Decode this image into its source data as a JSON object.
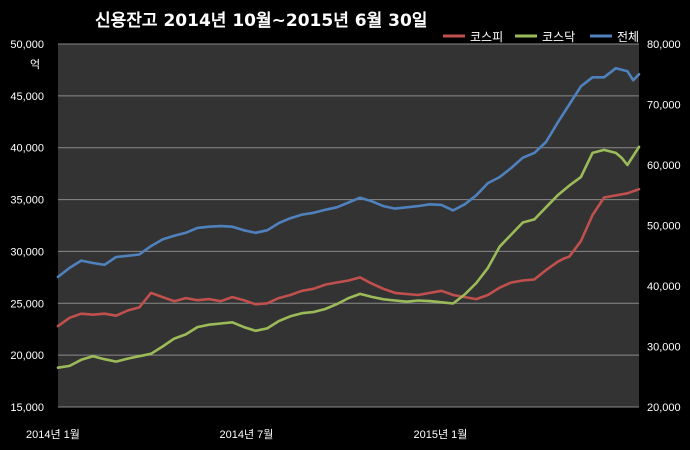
{
  "chart_data": {
    "type": "line",
    "title": "신용잔고 2014년 10월~2015년 6월 30일",
    "left_unit": "억",
    "left_axis": {
      "min": 15000,
      "max": 50000,
      "step": 5000,
      "ticks": [
        "15,000",
        "20,000",
        "25,000",
        "30,000",
        "35,000",
        "40,000",
        "45,000",
        "50,000"
      ]
    },
    "right_axis": {
      "min": 20000,
      "max": 80000,
      "step": 10000,
      "ticks": [
        "20,000",
        "30,000",
        "40,000",
        "50,000",
        "60,000",
        "70,000",
        "80,000"
      ]
    },
    "x_labels": [
      {
        "label": "2014년 1월",
        "t": 0
      },
      {
        "label": "2014년 7월",
        "t": 0.333
      },
      {
        "label": "2015년 1월",
        "t": 0.667
      }
    ],
    "grid": true,
    "legend_position": "top-right",
    "series": [
      {
        "name": "코스피",
        "color": "#c0504d",
        "axis": "left",
        "x": [
          0,
          0.02,
          0.04,
          0.06,
          0.08,
          0.1,
          0.12,
          0.14,
          0.16,
          0.18,
          0.2,
          0.22,
          0.24,
          0.26,
          0.28,
          0.3,
          0.32,
          0.34,
          0.36,
          0.38,
          0.4,
          0.42,
          0.44,
          0.46,
          0.48,
          0.5,
          0.52,
          0.54,
          0.56,
          0.58,
          0.6,
          0.62,
          0.64,
          0.66,
          0.68,
          0.7,
          0.72,
          0.74,
          0.76,
          0.78,
          0.8,
          0.82,
          0.84,
          0.86,
          0.87,
          0.88,
          0.9,
          0.92,
          0.94,
          0.96,
          0.98,
          1.0
        ],
        "values": [
          22800,
          23600,
          24000,
          23900,
          24000,
          23800,
          24300,
          24600,
          26000,
          25600,
          25200,
          25500,
          25300,
          25400,
          25200,
          25600,
          25300,
          24900,
          25000,
          25500,
          25800,
          26200,
          26400,
          26800,
          27000,
          27200,
          27500,
          26900,
          26400,
          26000,
          25900,
          25800,
          26000,
          26200,
          25800,
          25600,
          25400,
          25800,
          26500,
          27000,
          27200,
          27300,
          28200,
          29000,
          29300,
          29500,
          31000,
          33500,
          35200,
          35400,
          35600,
          36000
        ]
      },
      {
        "name": "코스닥",
        "color": "#9bbb59",
        "axis": "right",
        "x": [
          0,
          0.02,
          0.04,
          0.06,
          0.08,
          0.1,
          0.12,
          0.14,
          0.16,
          0.18,
          0.2,
          0.22,
          0.24,
          0.26,
          0.28,
          0.3,
          0.32,
          0.34,
          0.36,
          0.38,
          0.4,
          0.42,
          0.44,
          0.46,
          0.48,
          0.5,
          0.52,
          0.54,
          0.56,
          0.58,
          0.6,
          0.62,
          0.64,
          0.66,
          0.68,
          0.7,
          0.72,
          0.74,
          0.76,
          0.78,
          0.8,
          0.82,
          0.84,
          0.86,
          0.88,
          0.9,
          0.92,
          0.94,
          0.96,
          0.97,
          0.98,
          1.0
        ],
        "values": [
          26500,
          26800,
          27800,
          28400,
          27900,
          27500,
          28000,
          28400,
          28800,
          30000,
          31300,
          32000,
          33200,
          33600,
          33800,
          34000,
          33200,
          32600,
          33000,
          34200,
          35000,
          35500,
          35700,
          36200,
          37000,
          38000,
          38700,
          38200,
          37800,
          37600,
          37400,
          37600,
          37500,
          37300,
          37100,
          38600,
          40500,
          43000,
          46500,
          48500,
          50500,
          51000,
          53000,
          55000,
          56600,
          58000,
          62000,
          62500,
          62000,
          61200,
          60000,
          63000
        ]
      },
      {
        "name": "전체",
        "color": "#4f81bd",
        "axis": "right",
        "x": [
          0,
          0.02,
          0.04,
          0.06,
          0.08,
          0.1,
          0.12,
          0.14,
          0.16,
          0.18,
          0.2,
          0.22,
          0.24,
          0.26,
          0.28,
          0.3,
          0.32,
          0.34,
          0.36,
          0.38,
          0.4,
          0.42,
          0.44,
          0.46,
          0.48,
          0.5,
          0.52,
          0.54,
          0.56,
          0.58,
          0.6,
          0.62,
          0.64,
          0.66,
          0.68,
          0.7,
          0.72,
          0.74,
          0.76,
          0.78,
          0.8,
          0.82,
          0.84,
          0.86,
          0.88,
          0.9,
          0.92,
          0.94,
          0.96,
          0.98,
          0.99,
          1.0
        ],
        "values": [
          41500,
          43000,
          44200,
          43800,
          43500,
          44800,
          45000,
          45200,
          46600,
          47700,
          48300,
          48800,
          49600,
          49800,
          49900,
          49800,
          49200,
          48800,
          49200,
          50400,
          51200,
          51800,
          52100,
          52600,
          53000,
          53800,
          54600,
          54000,
          53200,
          52800,
          53000,
          53200,
          53500,
          53400,
          52500,
          53500,
          55000,
          57000,
          58000,
          59500,
          61200,
          62000,
          63800,
          67000,
          70000,
          73000,
          74500,
          74500,
          76000,
          75500,
          74000,
          75000
        ]
      }
    ]
  }
}
